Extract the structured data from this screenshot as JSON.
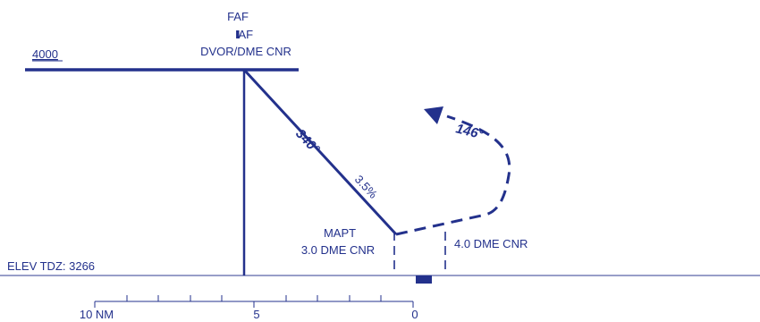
{
  "fix": {
    "faf": "FAF",
    "iaf": "IAF",
    "name": "DVOR/DME CNR"
  },
  "altitude": "4000",
  "course": {
    "inbound": "340°",
    "gradient": "3.5%",
    "missed_approach": "146°"
  },
  "mapt": {
    "label": "MAPT",
    "distance": "3.0 DME CNR"
  },
  "dme_4": "4.0 DME CNR",
  "elevation": "ELEV TDZ: 3266",
  "scale": {
    "left": "10 NM",
    "middle": "5",
    "right": "0"
  },
  "colors": {
    "ink": "#23318c",
    "ground": "#5a63a8"
  }
}
